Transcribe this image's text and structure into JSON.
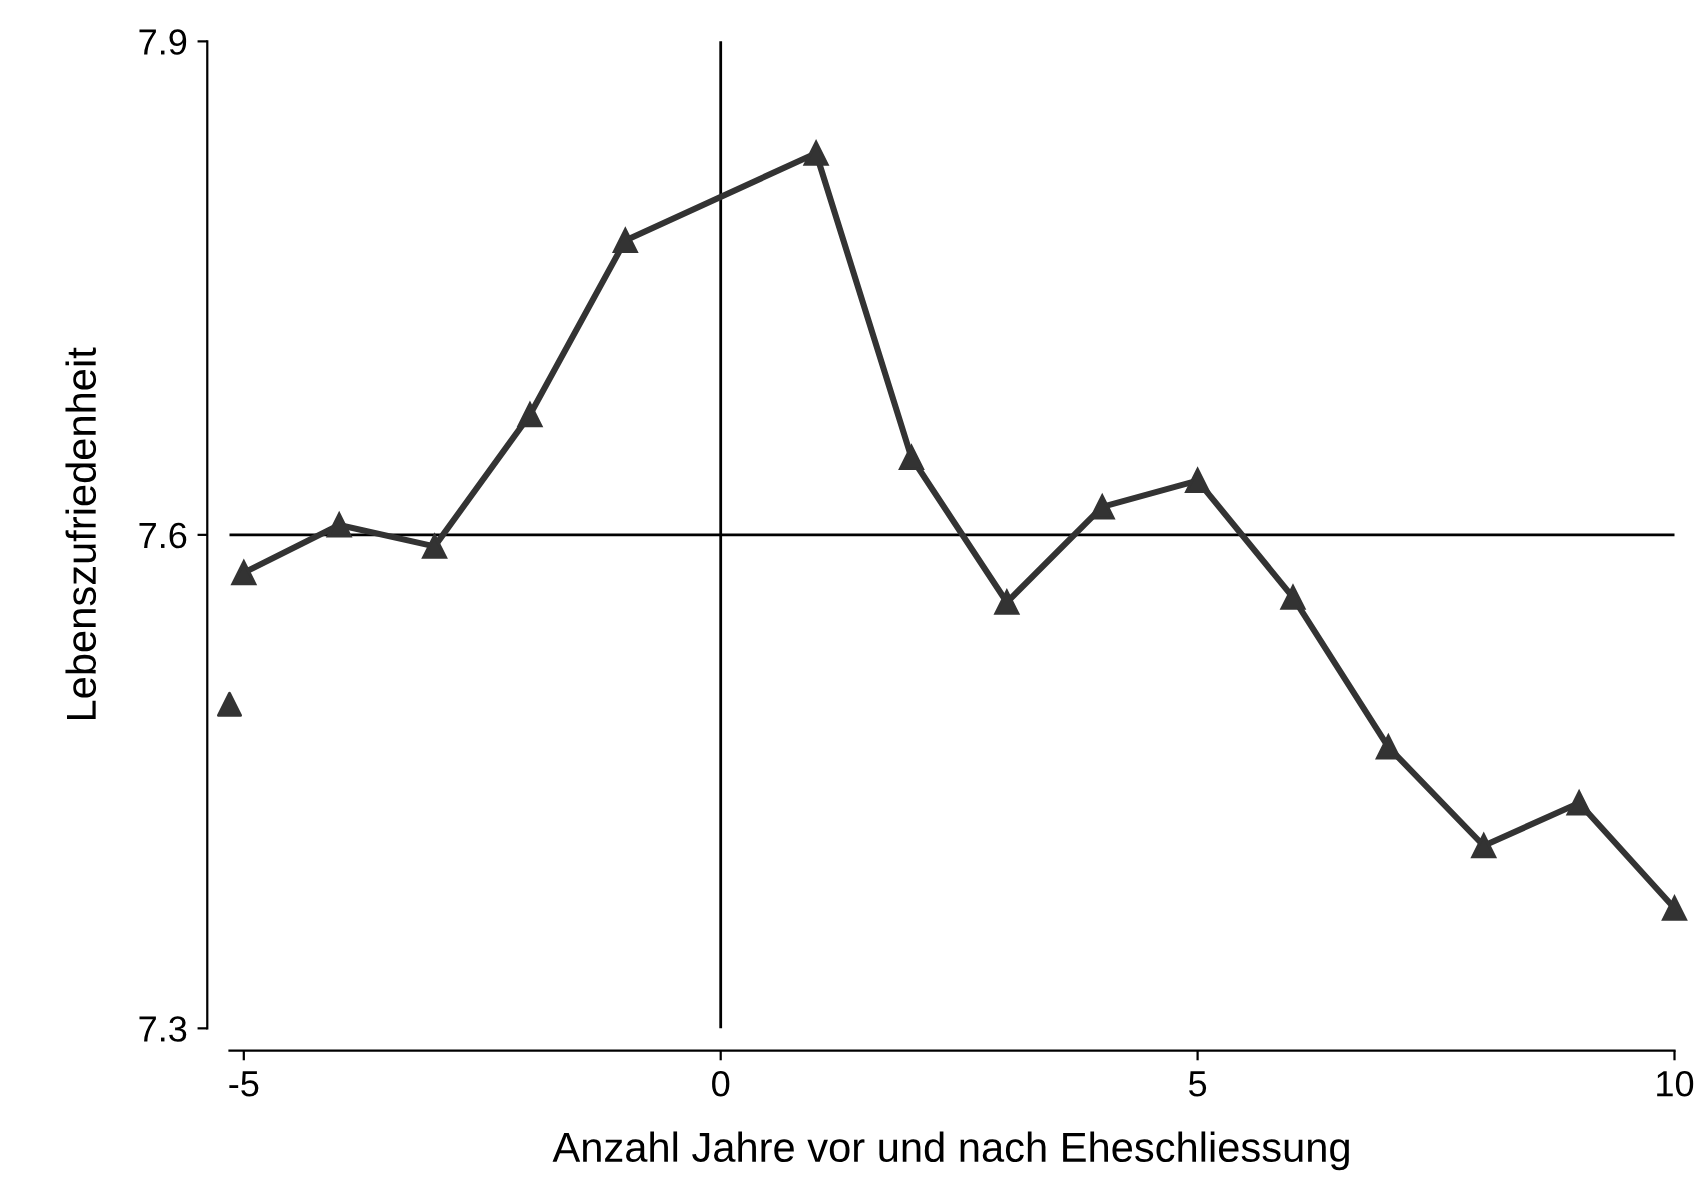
{
  "chart_data": {
    "type": "line",
    "xlabel": "Anzahl Jahre vor und nach Eheschliessung",
    "ylabel": "Lebenszufriedenheit",
    "xlim": [
      -5.15,
      10
    ],
    "ylim": [
      7.3,
      7.9
    ],
    "xticks": [
      -5,
      0,
      5,
      10
    ],
    "yticks": [
      7.3,
      7.6,
      7.9
    ],
    "marker": "triangle",
    "line_style": "solid",
    "grid": false,
    "legend": false,
    "series": [
      {
        "color": "#333333",
        "x": [
          -5,
          -4,
          -3,
          -2,
          -1,
          1,
          2,
          3,
          4,
          5,
          6,
          7,
          8,
          9,
          10
        ],
        "values": [
          7.577,
          7.606,
          7.593,
          7.673,
          7.779,
          7.832,
          7.647,
          7.559,
          7.617,
          7.633,
          7.562,
          7.471,
          7.411,
          7.437,
          7.373
        ]
      },
      {
        "type": "scatter",
        "color": "#333333",
        "x": [
          -5.15
        ],
        "values": [
          7.497
        ]
      }
    ],
    "ref_lines": [
      {
        "axis": "y",
        "value": 7.6,
        "color": "#000000"
      },
      {
        "axis": "x",
        "value": 0,
        "color": "#000000"
      }
    ]
  }
}
